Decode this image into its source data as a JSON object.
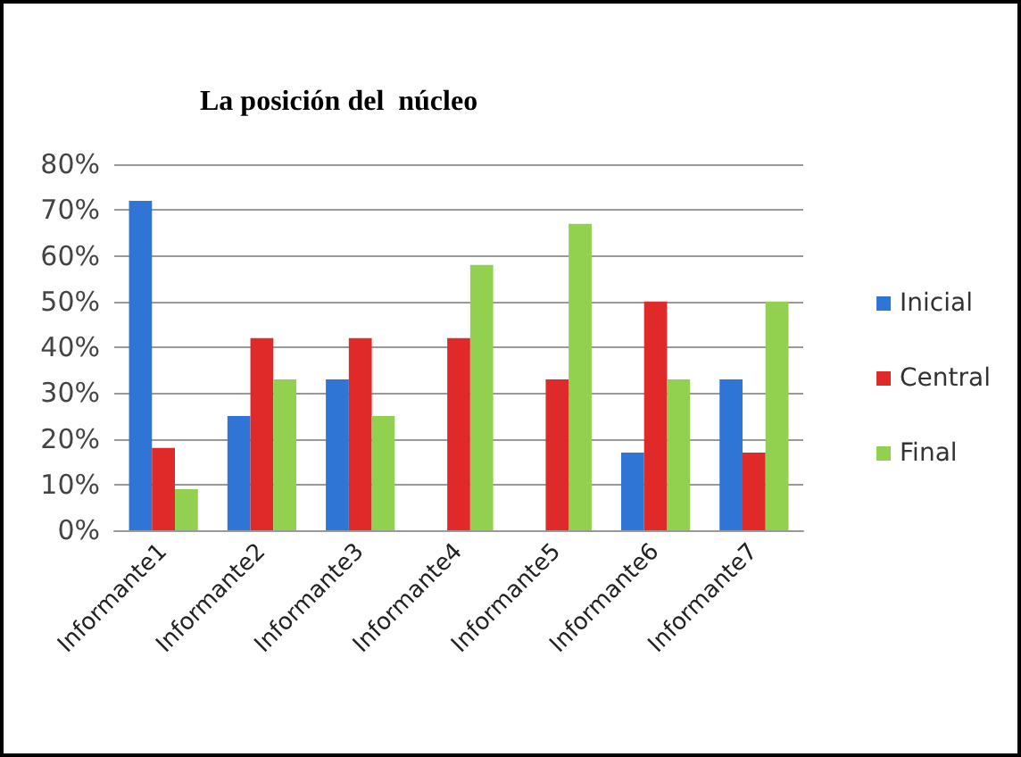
{
  "chart_data": {
    "type": "bar",
    "title": "La posición del  núcleo",
    "categories": [
      "Informante1",
      "Informante2",
      "Informante3",
      "Informante4",
      "Informante5",
      "Informante6",
      "Informante7"
    ],
    "series": [
      {
        "name": "Inicial",
        "color": "#2e75d6",
        "values": [
          72,
          25,
          33,
          0,
          0,
          17,
          33
        ]
      },
      {
        "name": "Central",
        "color": "#e02a2a",
        "values": [
          18,
          42,
          42,
          42,
          33,
          50,
          17
        ]
      },
      {
        "name": "Final",
        "color": "#92d050",
        "values": [
          9,
          33,
          25,
          58,
          67,
          33,
          50
        ]
      }
    ],
    "ylim": [
      0,
      80
    ],
    "yticks": [
      {
        "value": 0,
        "label": "0%"
      },
      {
        "value": 10,
        "label": "10%"
      },
      {
        "value": 20,
        "label": "20%"
      },
      {
        "value": 30,
        "label": "30%"
      },
      {
        "value": 40,
        "label": "40%"
      },
      {
        "value": 50,
        "label": "50%"
      },
      {
        "value": 60,
        "label": "60%"
      },
      {
        "value": 70,
        "label": "70%"
      },
      {
        "value": 80,
        "label": "80%"
      }
    ],
    "grid": "y",
    "legend": "right"
  }
}
